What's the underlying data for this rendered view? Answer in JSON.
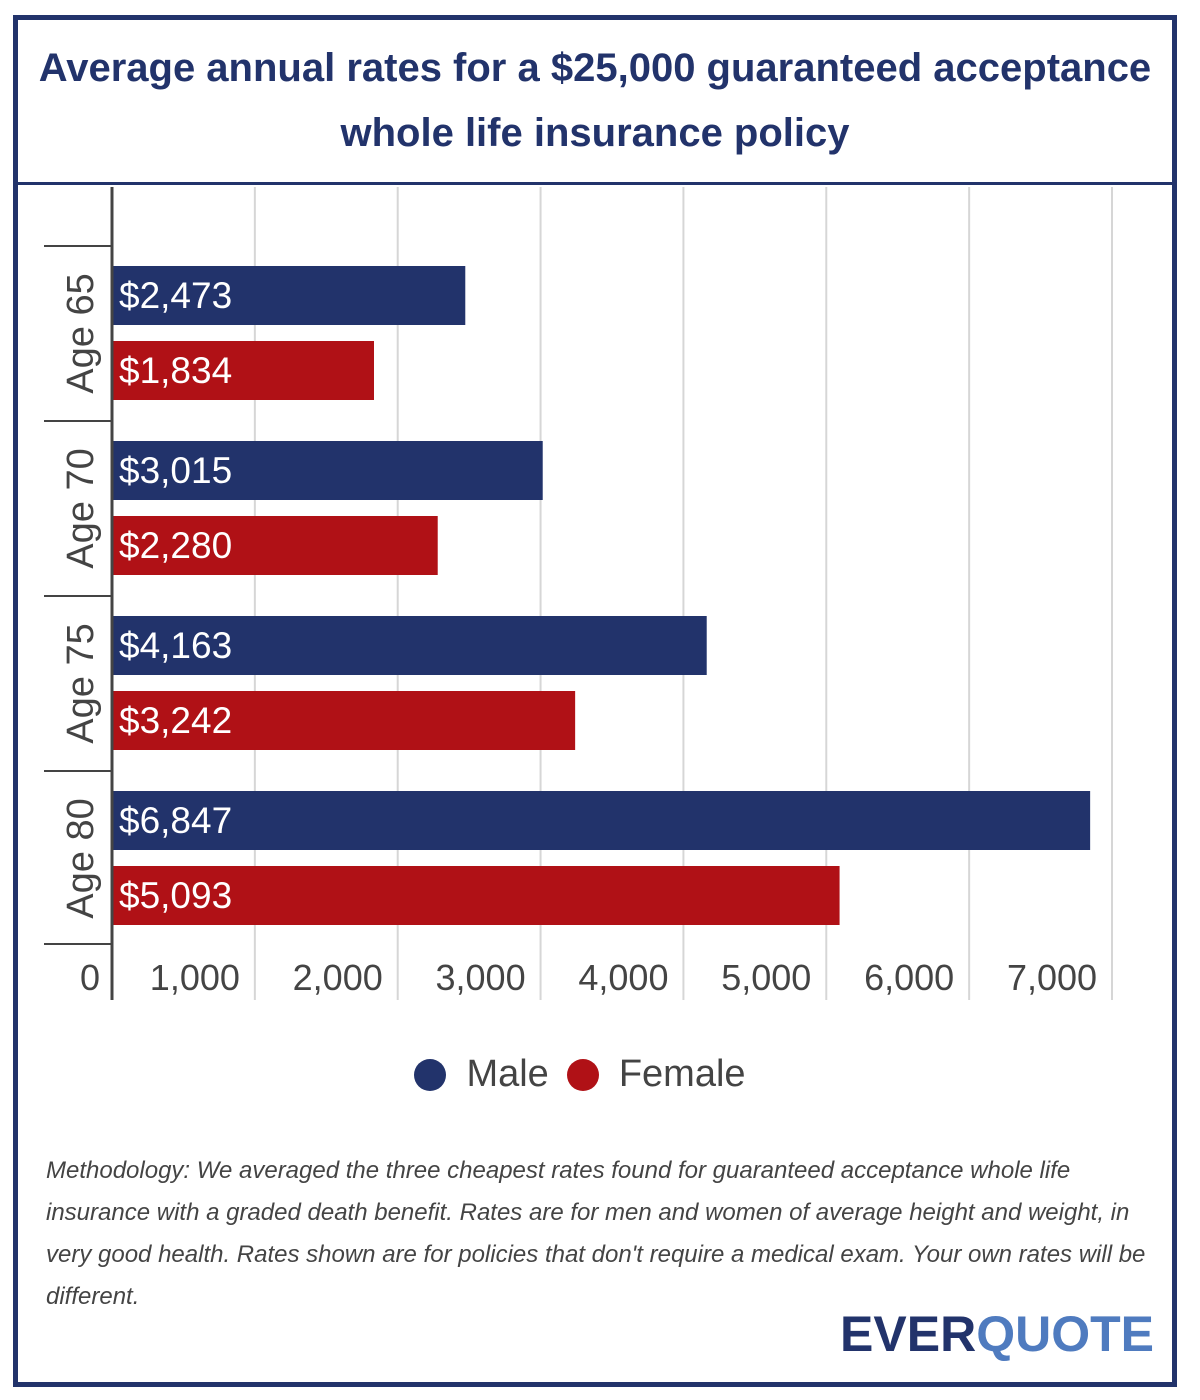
{
  "colors": {
    "male": "#22336b",
    "female": "#b01116",
    "frame": "#22336b",
    "grid": "#d6d6d6"
  },
  "title": "Average annual rates for a $25,000 guaranteed acceptance whole life insurance policy",
  "chart_data": {
    "type": "bar",
    "orientation": "horizontal",
    "title": "Average annual rates for a $25,000 guaranteed acceptance whole life insurance policy",
    "categories": [
      "Age 65",
      "Age 70",
      "Age 75",
      "Age 80"
    ],
    "series": [
      {
        "name": "Male",
        "values": [
          2473,
          3015,
          4163,
          6847
        ],
        "labels": [
          "$2,473",
          "$3,015",
          "$4,163",
          "$6,847"
        ]
      },
      {
        "name": "Female",
        "values": [
          1834,
          2280,
          3242,
          5093
        ],
        "labels": [
          "$1,834",
          "$2,280",
          "$3,242",
          "$5,093"
        ]
      }
    ],
    "xlim": [
      0,
      7000
    ],
    "xticks": [
      0,
      1000,
      2000,
      3000,
      4000,
      5000,
      6000,
      7000
    ],
    "xtick_labels": [
      "0",
      "1,000",
      "2,000",
      "3,000",
      "4,000",
      "5,000",
      "6,000",
      "7,000"
    ],
    "grid": true,
    "legend": "bottom"
  },
  "legend": {
    "male": "Male",
    "female": "Female"
  },
  "methodology": "Methodology: We averaged the three cheapest rates found for guaranteed acceptance whole life insurance with a graded death benefit. Rates are for men and women of average height and weight, in very good health. Rates shown are for policies that don't require a medical exam. Your own rates will be different.",
  "logo": {
    "part1": "EVER",
    "part2": "QUOTE"
  }
}
